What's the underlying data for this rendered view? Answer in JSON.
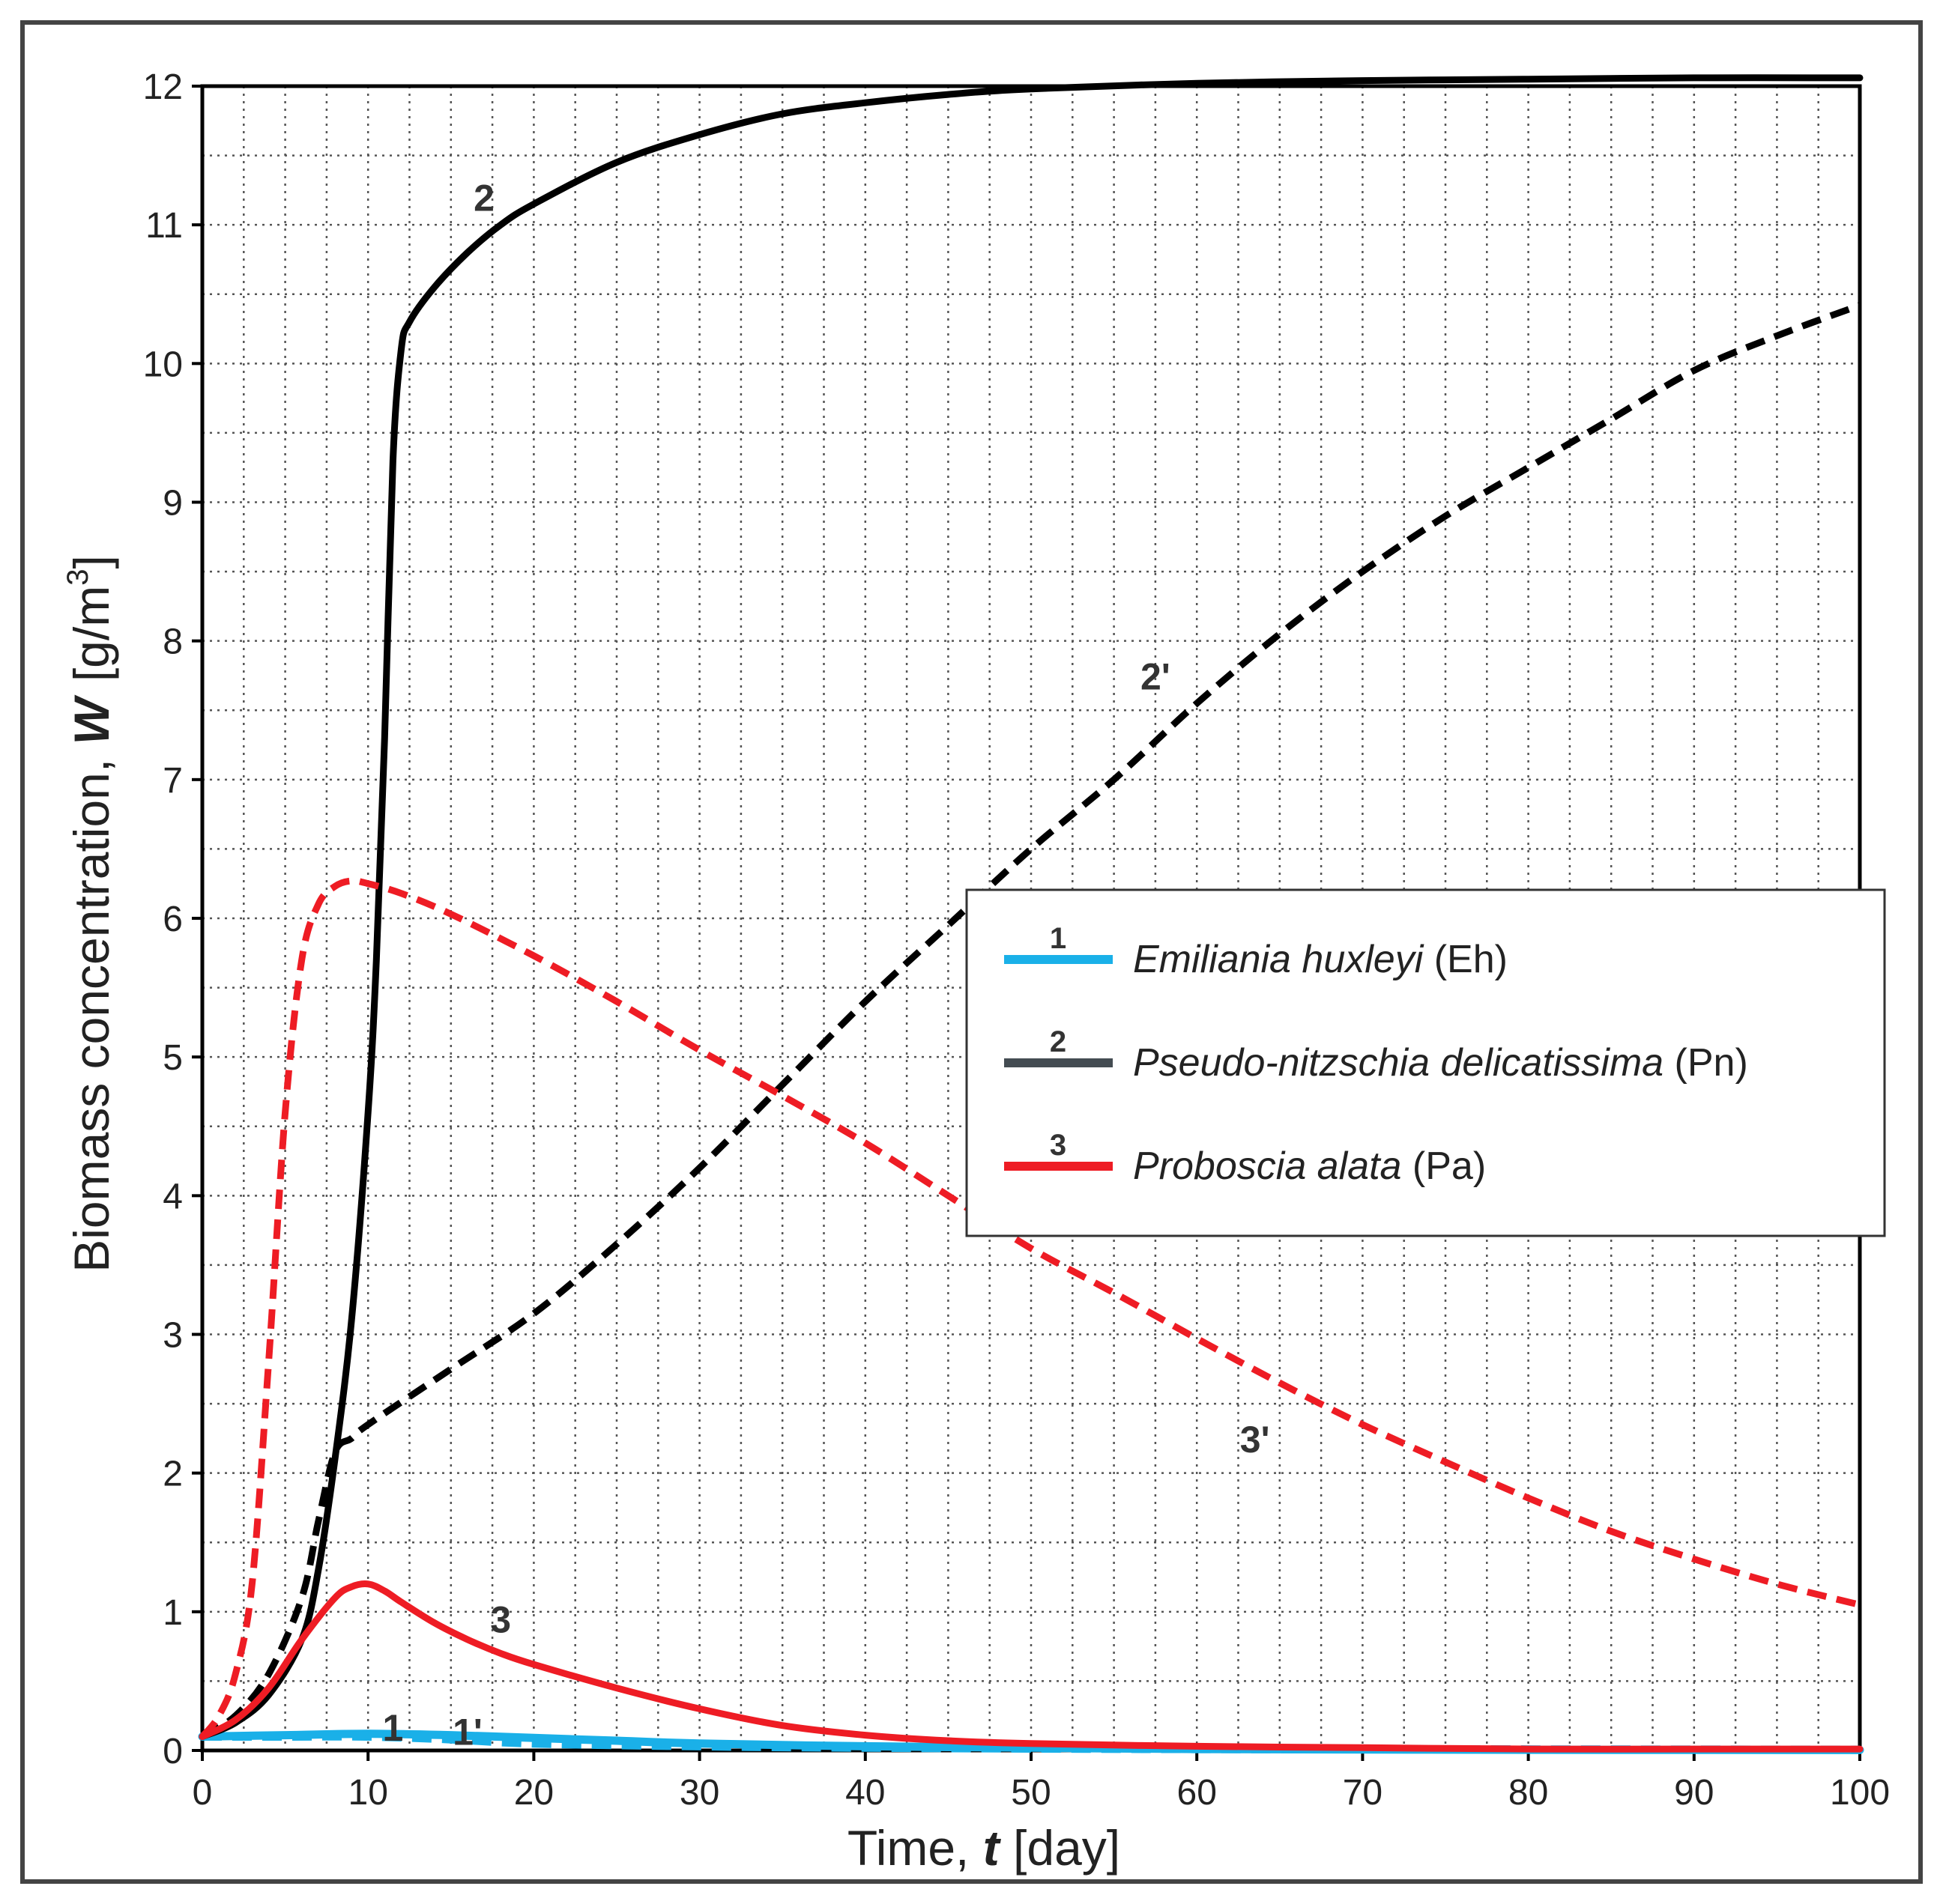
{
  "chart_data": {
    "type": "line",
    "xlabel_prefix": "Time, ",
    "xlabel_var": "t",
    "xlabel_suffix": " [day]",
    "ylabel_prefix": "Biomass concentration, ",
    "ylabel_var": "W",
    "ylabel_unit": "[g/m",
    "ylabel_exp": "3",
    "ylabel_close": "]",
    "xlim": [
      0,
      100
    ],
    "ylim": [
      0,
      12
    ],
    "x_ticks": [
      "0",
      "10",
      "20",
      "30",
      "40",
      "50",
      "60",
      "70",
      "80",
      "90",
      "100"
    ],
    "y_ticks": [
      "0",
      "1",
      "2",
      "3",
      "4",
      "5",
      "6",
      "7",
      "8",
      "9",
      "10",
      "11",
      "12"
    ],
    "grid": "dotted, every 2.5 days and 0.5 g/m3",
    "legend_position": "center-right",
    "legend": [
      {
        "num": "1",
        "name": "Emiliania huxleyi",
        "abbr": " (Eh)",
        "color": "#1ab0e8"
      },
      {
        "num": "2",
        "name": "Pseudo-nitzschia delicatissima",
        "abbr": " (Pn)",
        "color": "#444c52"
      },
      {
        "num": "3",
        "name": "Proboscia alata",
        "abbr": " (Pa)",
        "color": "#ee1c24"
      }
    ],
    "series": [
      {
        "label": "1",
        "color": "#1ab0e8",
        "style": "solid",
        "x": [
          0,
          5,
          10,
          15,
          20,
          25,
          30,
          40,
          50,
          60,
          80,
          100
        ],
        "y": [
          0.1,
          0.11,
          0.12,
          0.11,
          0.09,
          0.07,
          0.05,
          0.03,
          0.02,
          0.01,
          0.005,
          0.003
        ]
      },
      {
        "label": "1'",
        "color": "#1ab0e8",
        "style": "dashed",
        "x": [
          0,
          5,
          10,
          15,
          20,
          30,
          40,
          60,
          100
        ],
        "y": [
          0.1,
          0.1,
          0.1,
          0.08,
          0.05,
          0.03,
          0.02,
          0.01,
          0.005
        ]
      },
      {
        "label": "2",
        "color": "#000000",
        "style": "solid",
        "x": [
          0,
          2,
          4,
          6,
          7,
          8,
          9,
          10,
          10.5,
          11,
          11.5,
          12,
          12.5,
          14,
          16,
          18,
          20,
          25,
          30,
          35,
          40,
          45,
          50,
          60,
          70,
          80,
          90,
          100
        ],
        "y": [
          0.1,
          0.2,
          0.4,
          0.8,
          1.3,
          2.1,
          3.1,
          4.6,
          5.7,
          7.3,
          9.3,
          10.1,
          10.3,
          10.55,
          10.8,
          11.0,
          11.15,
          11.45,
          11.65,
          11.8,
          11.88,
          11.94,
          11.98,
          12.02,
          12.04,
          12.05,
          12.06,
          12.06
        ]
      },
      {
        "label": "2'",
        "color": "#000000",
        "style": "dashed",
        "x": [
          0,
          2,
          4,
          6,
          7,
          8,
          9,
          10,
          15,
          20,
          25,
          30,
          35,
          40,
          45,
          50,
          55,
          60,
          65,
          70,
          75,
          80,
          85,
          90,
          95,
          100
        ],
        "y": [
          0.1,
          0.25,
          0.55,
          1.1,
          1.65,
          2.15,
          2.25,
          2.35,
          2.75,
          3.15,
          3.65,
          4.2,
          4.8,
          5.4,
          5.95,
          6.5,
          7.0,
          7.55,
          8.05,
          8.5,
          8.9,
          9.25,
          9.6,
          9.95,
          10.2,
          10.42
        ]
      },
      {
        "label": "3",
        "color": "#ee1c24",
        "style": "solid",
        "x": [
          0,
          2,
          4,
          6,
          8,
          9,
          10,
          11,
          12,
          14,
          16,
          18,
          20,
          25,
          30,
          35,
          40,
          45,
          50,
          60,
          70,
          80,
          90,
          100
        ],
        "y": [
          0.1,
          0.22,
          0.45,
          0.8,
          1.1,
          1.18,
          1.2,
          1.15,
          1.07,
          0.92,
          0.8,
          0.7,
          0.62,
          0.45,
          0.3,
          0.18,
          0.11,
          0.07,
          0.05,
          0.03,
          0.02,
          0.01,
          0.01,
          0.01
        ]
      },
      {
        "label": "3'",
        "color": "#ee1c24",
        "style": "dashed",
        "x": [
          0,
          1,
          2,
          3,
          4,
          5,
          6,
          7,
          8,
          9,
          10,
          12,
          15,
          20,
          25,
          30,
          35,
          40,
          45,
          50,
          55,
          60,
          65,
          70,
          75,
          80,
          85,
          90,
          95,
          100
        ],
        "y": [
          0.1,
          0.25,
          0.55,
          1.2,
          2.8,
          4.6,
          5.7,
          6.1,
          6.23,
          6.27,
          6.25,
          6.18,
          6.03,
          5.73,
          5.4,
          5.05,
          4.72,
          4.38,
          4.0,
          3.62,
          3.3,
          2.97,
          2.65,
          2.35,
          2.08,
          1.82,
          1.58,
          1.38,
          1.2,
          1.05
        ]
      }
    ],
    "annotations": [
      {
        "text": "2",
        "x": 17,
        "y": 11.1
      },
      {
        "text": "2'",
        "x": 57.5,
        "y": 7.65
      },
      {
        "text": "3'",
        "x": 63.5,
        "y": 2.15
      },
      {
        "text": "3",
        "x": 18,
        "y": 0.85
      },
      {
        "text": "1",
        "x": 11.5,
        "y": 0.07
      },
      {
        "text": "1'",
        "x": 16,
        "y": 0.04
      }
    ]
  }
}
